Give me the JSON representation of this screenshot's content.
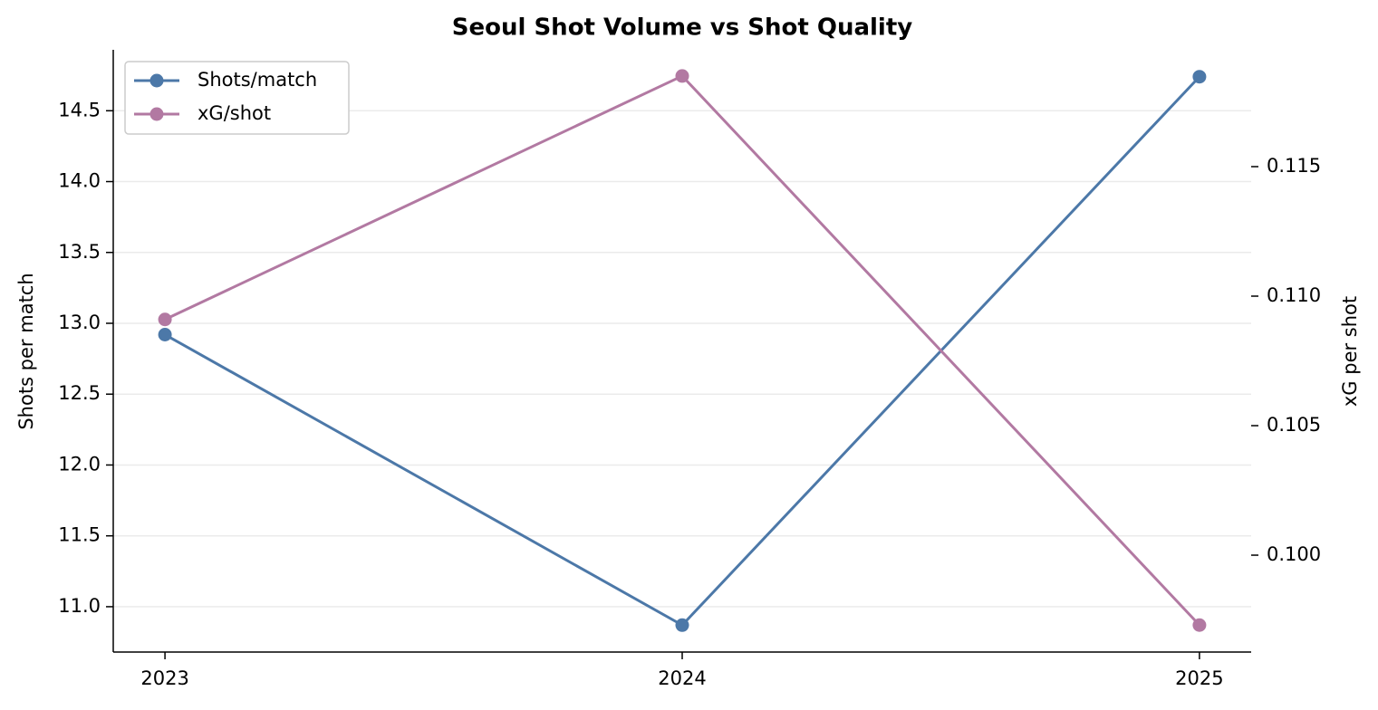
{
  "chart_data": {
    "type": "line",
    "title": "Seoul Shot Volume vs Shot Quality",
    "ylabel": "Shots per match",
    "y2label": "xG per shot",
    "categories": [
      "2023",
      "2024",
      "2025"
    ],
    "series": [
      {
        "name": "Shots/match",
        "color": "#4c78a8",
        "values": [
          12.92,
          10.87,
          14.74
        ]
      },
      {
        "name": "xG/shot",
        "color": "#b279a2",
        "axis": "y2",
        "values": [
          0.1091,
          0.1185,
          0.0973
        ]
      }
    ],
    "ylim": [
      10.68,
      14.93
    ],
    "yticks": [
      {
        "value": 11,
        "label": "11.0"
      },
      {
        "value": 11.5,
        "label": "11.5"
      },
      {
        "value": 12,
        "label": "12.0"
      },
      {
        "value": 12.5,
        "label": "12.5"
      },
      {
        "value": 13,
        "label": "13.0"
      },
      {
        "value": 13.5,
        "label": "13.5"
      },
      {
        "value": 14,
        "label": "14.0"
      },
      {
        "value": 14.5,
        "label": "14.5"
      }
    ],
    "y2lim": [
      0.09626,
      0.11951
    ],
    "y2ticks": [
      {
        "value": 0.1,
        "label": "0.100"
      },
      {
        "value": 0.105,
        "label": "0.105"
      },
      {
        "value": 0.11,
        "label": "0.110"
      },
      {
        "value": 0.115,
        "label": "0.115"
      }
    ],
    "grid": true,
    "legend": "upper left"
  }
}
